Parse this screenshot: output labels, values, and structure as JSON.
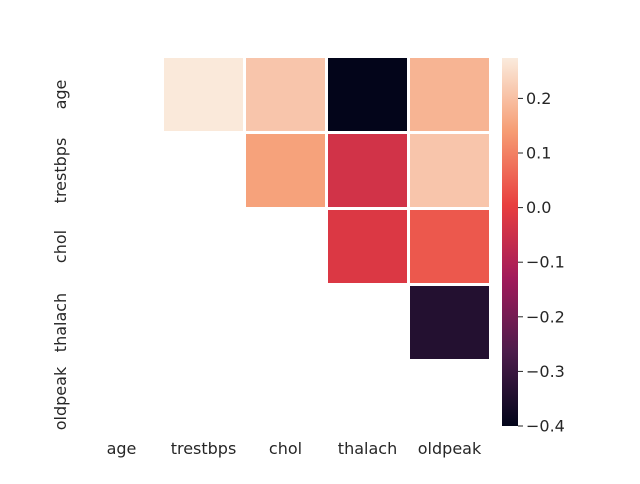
{
  "chart_data": {
    "type": "heatmap",
    "title": "",
    "xlabel": "",
    "ylabel": "",
    "x_categories": [
      "age",
      "trestbps",
      "chol",
      "thalach",
      "oldpeak"
    ],
    "y_categories": [
      "age",
      "trestbps",
      "chol",
      "thalach",
      "oldpeak"
    ],
    "mask": "lower triangle including diagonal hidden",
    "values": [
      [
        null,
        0.27,
        0.21,
        -0.4,
        0.18
      ],
      [
        null,
        null,
        0.15,
        -0.04,
        0.21
      ],
      [
        null,
        null,
        null,
        -0.02,
        0.04
      ],
      [
        null,
        null,
        null,
        null,
        -0.34
      ],
      [
        null,
        null,
        null,
        null,
        null
      ]
    ],
    "colorbar": {
      "vmin": -0.4,
      "vmax": 0.274,
      "ticks": [
        0.2,
        0.1,
        0.0,
        -0.1,
        -0.2,
        -0.3,
        -0.4
      ],
      "tick_labels": [
        "0.2",
        "0.1",
        "0.0",
        "−0.1",
        "−0.2",
        "−0.3",
        "−0.4"
      ],
      "colormap": "rocket",
      "colormap_stops": [
        "#03051a",
        "#4c1d4b",
        "#a11a5b",
        "#e83f3f",
        "#f69c73",
        "#faebdd"
      ]
    },
    "grid": false,
    "cell_border_color": "#ffffff"
  }
}
